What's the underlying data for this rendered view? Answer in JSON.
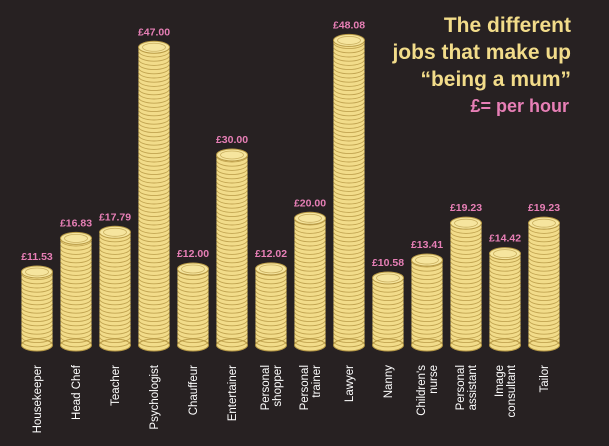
{
  "title_lines": [
    "The different",
    "jobs that make up",
    "“being a mum”"
  ],
  "unit_note": "£= per hour",
  "colors": {
    "background": "#272122",
    "coin": "#f2dc8a",
    "coin_edge": "#b89a46",
    "value_label": "#e77fb6",
    "category_label": "#ffffff"
  },
  "chart_data": {
    "type": "bar",
    "style": "coin stacks",
    "title": "The different jobs that make up “being a mum”",
    "subtitle": "£= per hour",
    "categories": [
      "Housekeeper",
      "Head Chef",
      "Teacher",
      "Psychologist",
      "Chauffeur",
      "Entertainer",
      "Personal shopper",
      "Personal trainer",
      "Lawyer",
      "Nanny",
      "Children's nurse",
      "Personal assistant",
      "Image consultant",
      "Tailor"
    ],
    "category_lines": [
      [
        "Housekeeper"
      ],
      [
        "Head Chef"
      ],
      [
        "Teacher"
      ],
      [
        "Psychologist"
      ],
      [
        "Chauffeur"
      ],
      [
        "Entertainer"
      ],
      [
        "Personal",
        "shopper"
      ],
      [
        "Personal",
        "trainer"
      ],
      [
        "Lawyer"
      ],
      [
        "Nanny"
      ],
      [
        "Children's",
        "nurse"
      ],
      [
        "Personal",
        "assistant"
      ],
      [
        "Image",
        "consultant"
      ],
      [
        "Tailor"
      ]
    ],
    "values": [
      11.53,
      16.83,
      17.79,
      47.0,
      12.0,
      30.0,
      12.02,
      20.0,
      48.08,
      10.58,
      13.41,
      19.23,
      14.42,
      19.23
    ],
    "value_labels": [
      "£11.53",
      "£16.83",
      "£17.79",
      "£47.00",
      "£12.00",
      "£30.00",
      "£12.02",
      "£20.00",
      "£48.08",
      "£10.58",
      "£13.41",
      "£19.23",
      "£14.42",
      "£19.23"
    ],
    "ylim": [
      0,
      50
    ],
    "grid": false,
    "legend": "none"
  }
}
